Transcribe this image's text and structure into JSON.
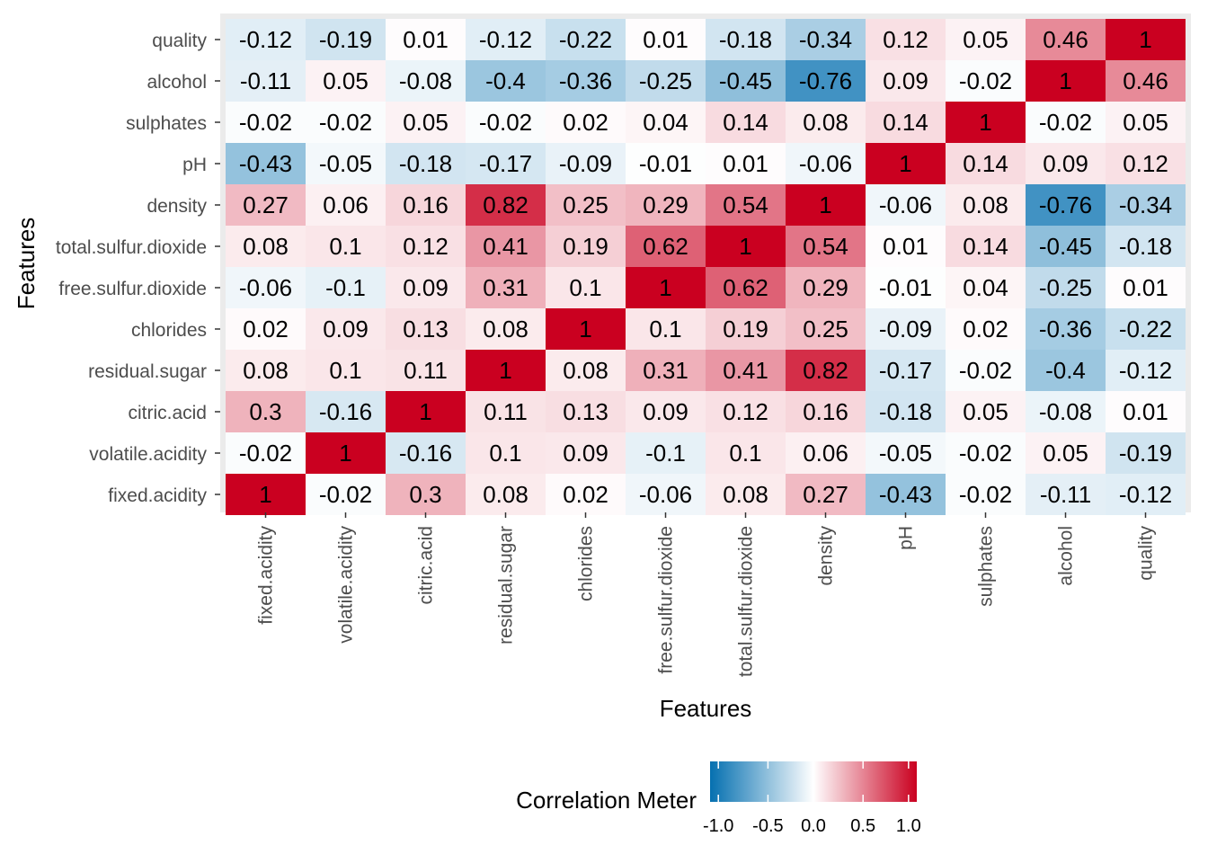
{
  "chart_data": {
    "type": "heatmap",
    "xlabel": "Features",
    "ylabel": "Features",
    "variables": [
      "fixed.acidity",
      "volatile.acidity",
      "citric.acid",
      "residual.sugar",
      "chlorides",
      "free.sulfur.dioxide",
      "total.sulfur.dioxide",
      "density",
      "pH",
      "sulphates",
      "alcohol",
      "quality"
    ],
    "matrix": [
      [
        "1",
        "-0.02",
        "0.3",
        "0.08",
        "0.02",
        "-0.06",
        "0.08",
        "0.27",
        "-0.43",
        "-0.02",
        "-0.11",
        "-0.12"
      ],
      [
        "-0.02",
        "1",
        "-0.16",
        "0.1",
        "0.09",
        "-0.1",
        "0.1",
        "0.06",
        "-0.05",
        "-0.02",
        "0.05",
        "-0.19"
      ],
      [
        "0.3",
        "-0.16",
        "1",
        "0.11",
        "0.13",
        "0.09",
        "0.12",
        "0.16",
        "-0.18",
        "0.05",
        "-0.08",
        "0.01"
      ],
      [
        "0.08",
        "0.1",
        "0.11",
        "1",
        "0.08",
        "0.31",
        "0.41",
        "0.82",
        "-0.17",
        "-0.02",
        "-0.4",
        "-0.12"
      ],
      [
        "0.02",
        "0.09",
        "0.13",
        "0.08",
        "1",
        "0.1",
        "0.19",
        "0.25",
        "-0.09",
        "0.02",
        "-0.36",
        "-0.22"
      ],
      [
        "-0.06",
        "-0.1",
        "0.09",
        "0.31",
        "0.1",
        "1",
        "0.62",
        "0.29",
        "-0.01",
        "0.04",
        "-0.25",
        "0.01"
      ],
      [
        "0.08",
        "0.1",
        "0.12",
        "0.41",
        "0.19",
        "0.62",
        "1",
        "0.54",
        "0.01",
        "0.14",
        "-0.45",
        "-0.18"
      ],
      [
        "0.27",
        "0.06",
        "0.16",
        "0.82",
        "0.25",
        "0.29",
        "0.54",
        "1",
        "-0.06",
        "0.08",
        "-0.76",
        "-0.34"
      ],
      [
        "-0.43",
        "-0.05",
        "-0.18",
        "-0.17",
        "-0.09",
        "-0.01",
        "0.01",
        "-0.06",
        "1",
        "0.14",
        "0.09",
        "0.12"
      ],
      [
        "-0.02",
        "-0.02",
        "0.05",
        "-0.02",
        "0.02",
        "0.04",
        "0.14",
        "0.08",
        "0.14",
        "1",
        "-0.02",
        "0.05"
      ],
      [
        "-0.11",
        "0.05",
        "-0.08",
        "-0.4",
        "-0.36",
        "-0.25",
        "-0.45",
        "-0.76",
        "0.09",
        "-0.02",
        "1",
        "0.46"
      ],
      [
        "-0.12",
        "-0.19",
        "0.01",
        "-0.12",
        "-0.22",
        "0.01",
        "-0.18",
        "-0.34",
        "0.12",
        "0.05",
        "0.46",
        "1"
      ]
    ],
    "color_scale": {
      "limits": [
        -1,
        1
      ],
      "low": "#0570b0",
      "mid": "#ffffff",
      "high": "#ca0020"
    },
    "legend": {
      "title": "Correlation Meter",
      "position": "bottom",
      "ticks": [
        "-1.0",
        "-0.5",
        "0.0",
        "0.5",
        "1.0"
      ]
    },
    "panel_background": "#ebebeb"
  }
}
